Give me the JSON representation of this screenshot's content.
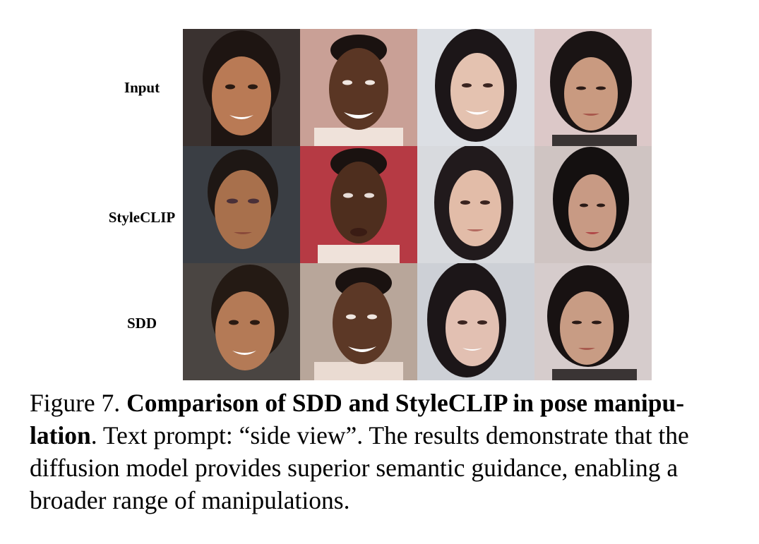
{
  "rows": [
    {
      "label": "Input"
    },
    {
      "label": "StyleCLIP"
    },
    {
      "label": "SDD"
    }
  ],
  "caption": {
    "figure_label": "Figure 7.",
    "title_part1": "Comparison of SDD and StyleCLIP in pose manipu-",
    "title_part2": "lation",
    "line2_text": ". Text prompt: “side view”. The results demonstrate that the",
    "line3_text": "diffusion model provides superior semantic guidance, enabling a",
    "line4_text": "broader range of manipulations."
  }
}
